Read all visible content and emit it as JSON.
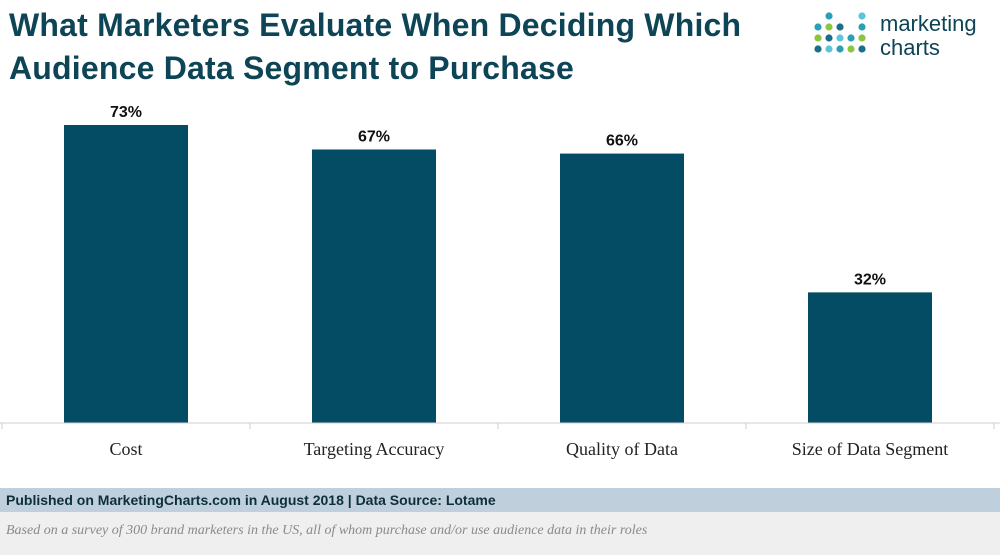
{
  "header": {
    "title": "What Marketers Evaluate When Deciding Which Audience Data Segment to Purchase",
    "logo_text_line1": "marketing",
    "logo_text_line2": "charts"
  },
  "footer": {
    "source": "Published on MarketingCharts.com in August 2018 | Data Source: Lotame",
    "note": "Based on a survey of 300 brand marketers in the US, all of whom purchase and/or use audience data in their roles"
  },
  "colors": {
    "bar": "#034c63",
    "title": "#0d4456",
    "logo_dots": [
      "#5bc6d8",
      "#2b9fb6",
      "#8cc63f",
      "#1b6f8a"
    ]
  },
  "chart_data": {
    "type": "bar",
    "categories": [
      "Cost",
      "Targeting Accuracy",
      "Quality of Data",
      "Size of Data Segment"
    ],
    "values": [
      73,
      67,
      66,
      32
    ],
    "value_labels": [
      "73%",
      "67%",
      "66%",
      "32%"
    ],
    "title": "What Marketers Evaluate When Deciding Which Audience Data Segment to Purchase",
    "xlabel": "",
    "ylabel": "",
    "ylim": [
      0,
      80
    ],
    "grid": false,
    "legend": "none"
  }
}
